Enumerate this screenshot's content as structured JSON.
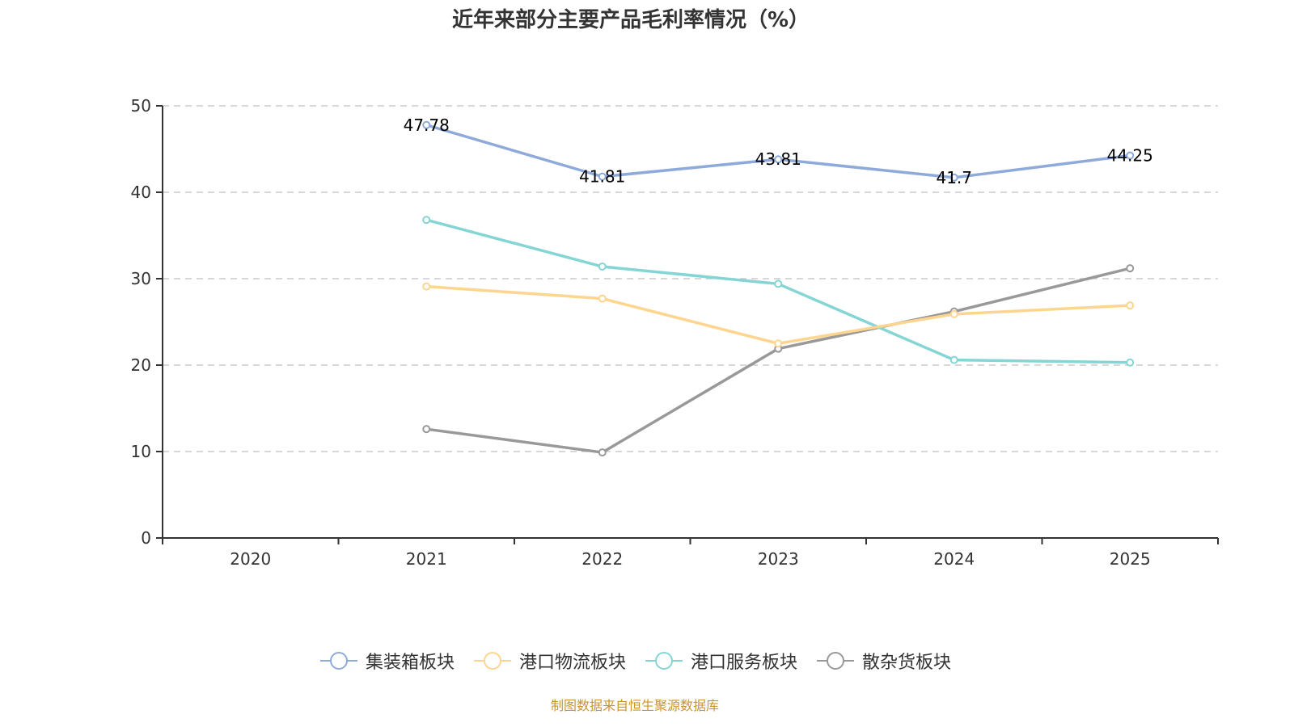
{
  "chart_data": {
    "type": "line",
    "title": "近年来部分主要产品毛利率情况（%）",
    "xlabel": "",
    "ylabel": "",
    "categories": [
      "2020",
      "2021",
      "2022",
      "2023",
      "2024",
      "2025"
    ],
    "ylim": [
      0,
      50
    ],
    "yticks": [
      "0",
      "10",
      "20",
      "30",
      "40",
      "50"
    ],
    "grid": true,
    "legend_position": "bottom",
    "series": [
      {
        "name": "集装箱板块",
        "color": "#8eaadb",
        "values": [
          null,
          47.78,
          41.81,
          43.81,
          41.7,
          44.25
        ],
        "labels": [
          "",
          "47.78",
          "41.81",
          "43.81",
          "41.7",
          "44.25"
        ]
      },
      {
        "name": "港口物流板块",
        "color": "#fdd58e",
        "values": [
          null,
          29.1,
          27.7,
          22.5,
          25.9,
          26.9
        ]
      },
      {
        "name": "港口服务板块",
        "color": "#85d5d5",
        "values": [
          null,
          36.8,
          31.4,
          29.4,
          20.6,
          20.3
        ]
      },
      {
        "name": "散杂货板块",
        "color": "#999999",
        "values": [
          null,
          12.6,
          9.9,
          21.9,
          26.2,
          31.2
        ]
      }
    ]
  },
  "source": "制图数据来自恒生聚源数据库"
}
